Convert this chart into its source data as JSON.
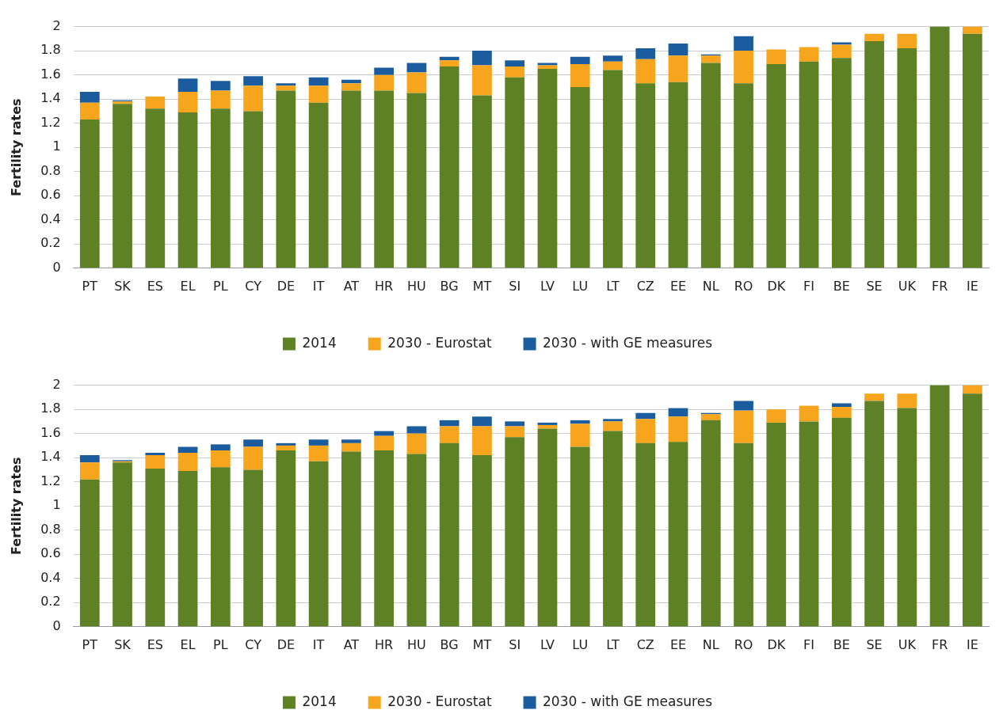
{
  "chart_data": [
    {
      "type": "bar",
      "stacked": true,
      "ylabel": "Fertility rates",
      "legend": "bottom",
      "grid": "y",
      "ylim": [
        0,
        2
      ],
      "yticks": [
        0,
        0.2,
        0.4,
        0.6,
        0.8,
        1,
        1.2,
        1.4,
        1.6,
        1.8,
        2
      ],
      "categories": [
        "PT",
        "SK",
        "ES",
        "EL",
        "PL",
        "CY",
        "DE",
        "IT",
        "AT",
        "HR",
        "HU",
        "BG",
        "MT",
        "SI",
        "LV",
        "LU",
        "LT",
        "CZ",
        "EE",
        "NL",
        "RO",
        "DK",
        "FI",
        "BE",
        "SE",
        "UK",
        "FR",
        "IE"
      ],
      "series": [
        {
          "name": "2014",
          "color": "#5e8126",
          "values": [
            1.23,
            1.36,
            1.32,
            1.29,
            1.32,
            1.3,
            1.47,
            1.37,
            1.47,
            1.47,
            1.45,
            1.67,
            1.43,
            1.58,
            1.65,
            1.5,
            1.64,
            1.53,
            1.54,
            1.7,
            1.53,
            1.69,
            1.71,
            1.74,
            1.88,
            1.82,
            2.0,
            1.94
          ]
        },
        {
          "name": "2030 - Eurostat",
          "color": "#f7a51c",
          "values": [
            0.14,
            0.02,
            0.1,
            0.17,
            0.15,
            0.21,
            0.04,
            0.14,
            0.06,
            0.13,
            0.17,
            0.05,
            0.25,
            0.09,
            0.03,
            0.19,
            0.07,
            0.2,
            0.22,
            0.06,
            0.27,
            0.12,
            0.12,
            0.11,
            0.06,
            0.12,
            null,
            0.06
          ]
        },
        {
          "name": "2030 - with GE measures",
          "color": "#1a5c9e",
          "values": [
            0.09,
            0.01,
            null,
            0.11,
            0.08,
            0.08,
            0.02,
            0.07,
            0.03,
            0.06,
            0.08,
            0.03,
            0.12,
            0.05,
            0.02,
            0.06,
            0.05,
            0.09,
            0.1,
            0.01,
            0.12,
            null,
            null,
            0.02,
            null,
            null,
            null,
            null
          ]
        }
      ]
    },
    {
      "type": "bar",
      "stacked": true,
      "ylabel": "Fertility rates",
      "legend": "bottom",
      "grid": "y",
      "ylim": [
        0,
        2
      ],
      "yticks": [
        0,
        0.2,
        0.4,
        0.6,
        0.8,
        1,
        1.2,
        1.4,
        1.6,
        1.8,
        2
      ],
      "categories": [
        "PT",
        "SK",
        "ES",
        "EL",
        "PL",
        "CY",
        "DE",
        "IT",
        "AT",
        "HR",
        "HU",
        "BG",
        "MT",
        "SI",
        "LV",
        "LU",
        "LT",
        "CZ",
        "EE",
        "NL",
        "RO",
        "DK",
        "FI",
        "BE",
        "SE",
        "UK",
        "FR",
        "IE"
      ],
      "series": [
        {
          "name": "2014",
          "color": "#5e8126",
          "values": [
            1.22,
            1.36,
            1.31,
            1.29,
            1.32,
            1.3,
            1.46,
            1.37,
            1.45,
            1.46,
            1.43,
            1.52,
            1.42,
            1.57,
            1.64,
            1.49,
            1.62,
            1.52,
            1.53,
            1.71,
            1.52,
            1.69,
            1.7,
            1.73,
            1.87,
            1.81,
            2.0,
            1.93
          ]
        },
        {
          "name": "2030 - Eurostat",
          "color": "#f7a51c",
          "values": [
            0.14,
            0.01,
            0.11,
            0.15,
            0.14,
            0.19,
            0.04,
            0.13,
            0.07,
            0.12,
            0.17,
            0.14,
            0.24,
            0.09,
            0.03,
            0.19,
            0.08,
            0.2,
            0.21,
            0.05,
            0.27,
            0.11,
            0.13,
            0.09,
            0.06,
            0.12,
            null,
            0.07
          ]
        },
        {
          "name": "2030 - with GE measures",
          "color": "#1a5c9e",
          "values": [
            0.06,
            0.01,
            0.02,
            0.05,
            0.05,
            0.06,
            0.02,
            0.05,
            0.03,
            0.04,
            0.06,
            0.05,
            0.08,
            0.04,
            0.02,
            0.03,
            0.02,
            0.05,
            0.07,
            0.01,
            0.08,
            null,
            null,
            0.03,
            null,
            null,
            null,
            null
          ]
        }
      ]
    }
  ]
}
